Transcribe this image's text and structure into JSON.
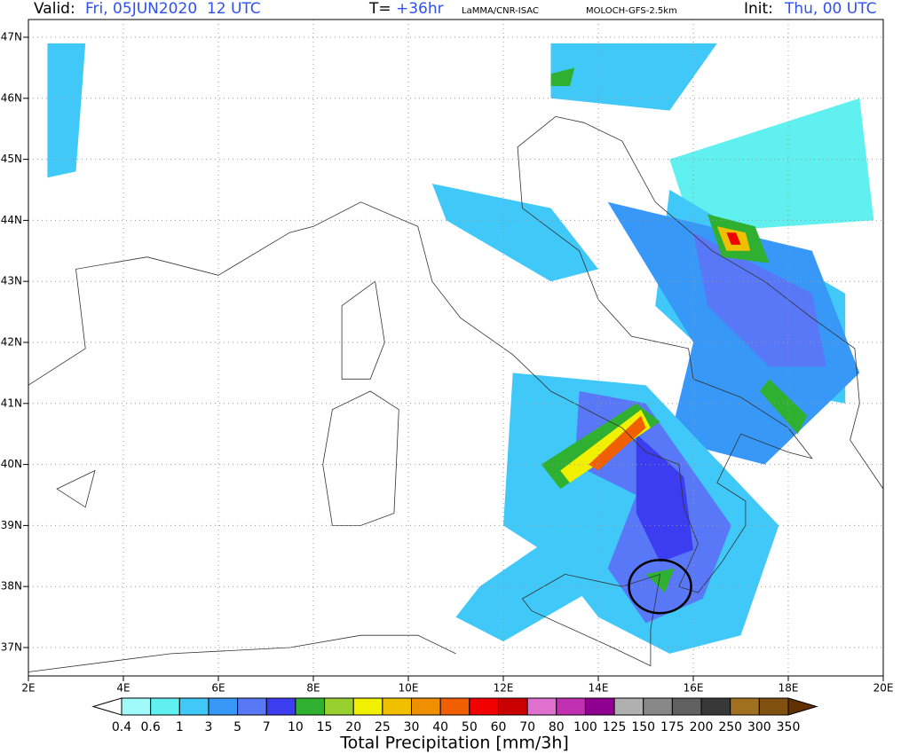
{
  "header": {
    "valid_label": "Valid:",
    "valid_value": "Fri, 05JUN2020  12 UTC",
    "step_label": "T=",
    "step_value": "+36hr",
    "source": "LaMMA/CNR-ISAC",
    "model": "MOLOCH-GFS-2.5km",
    "init_label": "Init:",
    "init_value": "Thu, 00 UTC"
  },
  "map": {
    "lat_labels": [
      "47N",
      "46N",
      "45N",
      "44N",
      "43N",
      "42N",
      "41N",
      "40N",
      "39N",
      "38N",
      "37N"
    ],
    "lon_labels": [
      "2E",
      "4E",
      "6E",
      "8E",
      "10E",
      "12E",
      "14E",
      "16E",
      "18E",
      "20E"
    ]
  },
  "legend": {
    "title": "Total Precipitation [mm/3h]",
    "labels": [
      "0.4",
      "0.6",
      "1",
      "3",
      "5",
      "7",
      "10",
      "15",
      "20",
      "25",
      "30",
      "40",
      "50",
      "60",
      "70",
      "80",
      "100",
      "125",
      "150",
      "175",
      "200",
      "250",
      "300",
      "350"
    ],
    "colors": [
      "#a0fafa",
      "#60f0f0",
      "#40c8f8",
      "#3898f8",
      "#5878f8",
      "#3c3cf0",
      "#30b030",
      "#98d030",
      "#f0f000",
      "#f0c000",
      "#f09000",
      "#f06000",
      "#f00000",
      "#c80000",
      "#e070d0",
      "#c030b0",
      "#900090",
      "#b0b0b0",
      "#888888",
      "#606060",
      "#383838",
      "#a07020",
      "#805010"
    ],
    "under_color": "#ffffff",
    "over_color": "#603000"
  }
}
